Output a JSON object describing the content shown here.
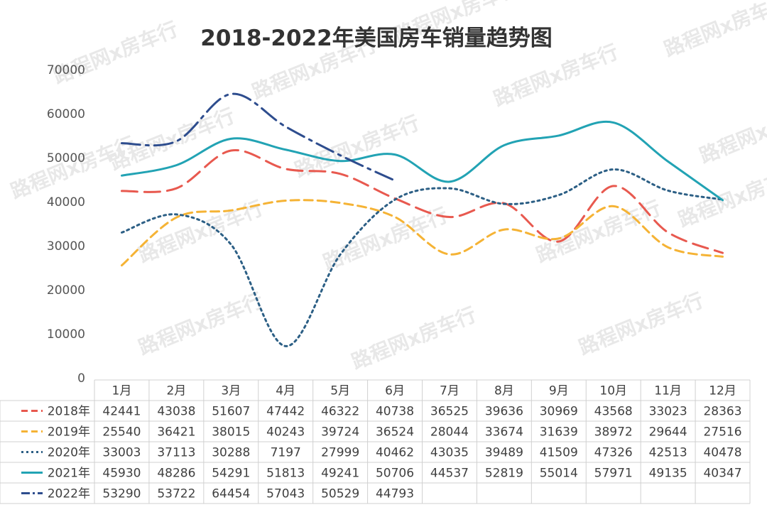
{
  "watermark": "路程网x房车行",
  "chart_data": {
    "type": "line",
    "title": "2018-2022年美国房车销量趋势图",
    "xlabel": "",
    "ylabel": "",
    "ylim": [
      0,
      70000
    ],
    "yticks": [
      0,
      10000,
      20000,
      30000,
      40000,
      50000,
      60000,
      70000
    ],
    "grid": false,
    "legend": "data-table-left",
    "categories": [
      "1月",
      "2月",
      "3月",
      "4月",
      "5月",
      "6月",
      "7月",
      "8月",
      "9月",
      "10月",
      "11月",
      "12月"
    ],
    "series": [
      {
        "name": "2018年",
        "color": "#e8594f",
        "dash": "long-dash",
        "values": [
          42441,
          43038,
          51607,
          47442,
          46322,
          40738,
          36525,
          39636,
          30969,
          43568,
          33023,
          28363
        ]
      },
      {
        "name": "2019年",
        "color": "#f5b335",
        "dash": "dash",
        "values": [
          25540,
          36421,
          38015,
          40243,
          39724,
          36524,
          28044,
          33674,
          31639,
          38972,
          29644,
          27516
        ]
      },
      {
        "name": "2020年",
        "color": "#2c5f85",
        "dash": "dot",
        "values": [
          33003,
          37113,
          30288,
          7197,
          27999,
          40462,
          43035,
          39489,
          41509,
          47326,
          42513,
          40478
        ]
      },
      {
        "name": "2021年",
        "color": "#22a3b4",
        "dash": "solid",
        "values": [
          45930,
          48286,
          54291,
          51813,
          49241,
          50706,
          44537,
          52819,
          55014,
          57971,
          49135,
          40347
        ]
      },
      {
        "name": "2022年",
        "color": "#2e4d8e",
        "dash": "dash-dot",
        "values": [
          53290,
          53722,
          64454,
          57043,
          50529,
          44793,
          null,
          null,
          null,
          null,
          null,
          null
        ]
      }
    ]
  }
}
